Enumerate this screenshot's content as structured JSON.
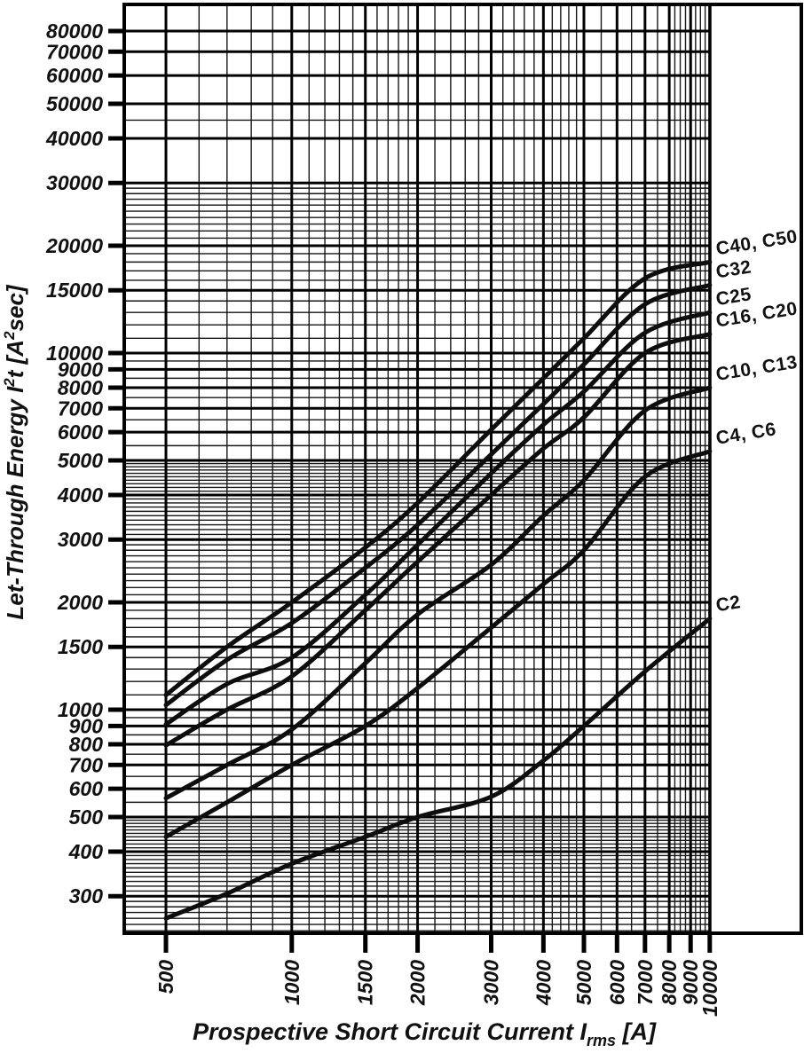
{
  "chart_data": {
    "type": "line",
    "title": "",
    "xlabel": "Prospective Short Circuit Current Irms [A]",
    "ylabel": "Let-Through Energy I²t [A²sec]",
    "x_scale": "log",
    "y_scale": "log",
    "x_range": [
      400,
      10000
    ],
    "y_range": [
      240,
      95000
    ],
    "grid": "fine log-log grid, black on white",
    "legend_position": "right-margin",
    "x_ticks": [
      500,
      1000,
      1500,
      2000,
      3000,
      4000,
      5000,
      6000,
      7000,
      8000,
      9000,
      10000
    ],
    "y_ticks": [
      80000,
      70000,
      60000,
      50000,
      40000,
      30000,
      20000,
      15000,
      10000,
      9000,
      8000,
      7000,
      6000,
      5000,
      4000,
      3000,
      2000,
      1500,
      1000,
      900,
      800,
      700,
      600,
      500,
      400,
      300
    ],
    "x": [
      500,
      700,
      1000,
      1500,
      2000,
      3000,
      4000,
      5000,
      7000,
      10000
    ],
    "series": [
      {
        "name": "C40, C50",
        "values": [
          1100,
          1500,
          2000,
          2850,
          3800,
          6100,
          8500,
          11000,
          16200,
          18000
        ]
      },
      {
        "name": "C32",
        "values": [
          1030,
          1380,
          1750,
          2500,
          3300,
          5200,
          7200,
          9300,
          13700,
          15500
        ]
      },
      {
        "name": "C25",
        "values": [
          910,
          1180,
          1400,
          2100,
          2900,
          4600,
          6300,
          7800,
          11400,
          13000
        ]
      },
      {
        "name": "C16, C20",
        "values": [
          795,
          1000,
          1240,
          1900,
          2600,
          4000,
          5400,
          6600,
          10000,
          11300
        ]
      },
      {
        "name": "C10, C13",
        "values": [
          565,
          700,
          880,
          1350,
          1850,
          2550,
          3500,
          4400,
          6900,
          8000
        ]
      },
      {
        "name": "C4, C6",
        "values": [
          440,
          550,
          700,
          900,
          1150,
          1700,
          2250,
          2800,
          4500,
          5300
        ]
      },
      {
        "name": "C2",
        "values": [
          260,
          305,
          370,
          440,
          500,
          570,
          720,
          900,
          1280,
          1800
        ]
      }
    ],
    "curve_color": "#0d0d0d"
  },
  "ylabel_parts": {
    "p1": "Let-Through Energy I",
    "sup1": "2",
    "p2": "t [A",
    "sup2": "2",
    "p3": "sec]"
  },
  "xlabel_parts": {
    "p1": "Prospective Short Circuit Current I",
    "sub": "rms",
    "p2": " [A]"
  }
}
